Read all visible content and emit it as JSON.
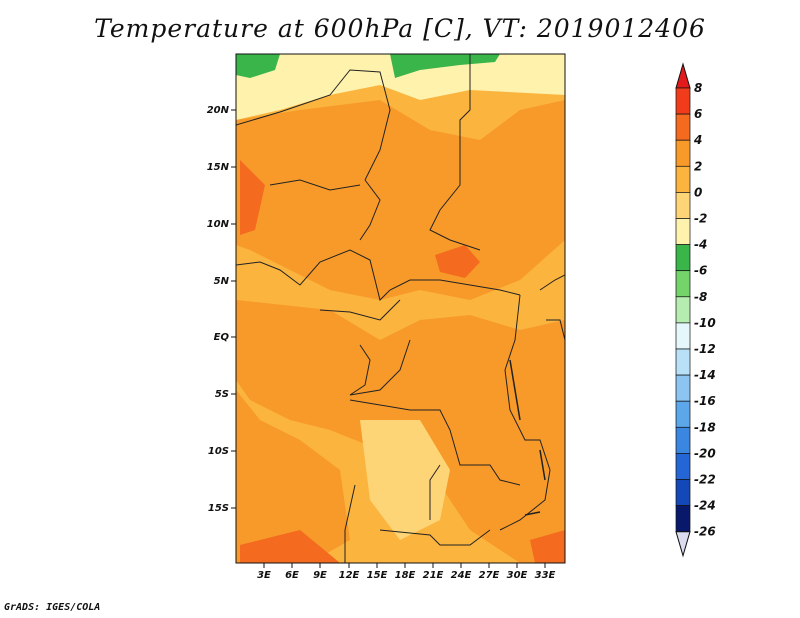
{
  "title": "Temperature at 600hPa [C], VT: 2019012406",
  "credit": "GrADS: IGES/COLA",
  "map": {
    "lat_labels": [
      "20N",
      "15N",
      "10N",
      "5N",
      "EQ",
      "5S",
      "10S",
      "15S"
    ],
    "lon_labels": [
      "3E",
      "6E",
      "9E",
      "12E",
      "15E",
      "18E",
      "21E",
      "24E",
      "27E",
      "30E",
      "33E"
    ]
  },
  "colorbar": {
    "levels": [
      "8",
      "6",
      "4",
      "2",
      "0",
      "-2",
      "-4",
      "-6",
      "-8",
      "-10",
      "-12",
      "-14",
      "-16",
      "-18",
      "-20",
      "-22",
      "-24",
      "-26"
    ],
    "colors": [
      "#e31a1c",
      "#f03c1a",
      "#f46a1e",
      "#f79a2a",
      "#fbb43e",
      "#fdd576",
      "#fff2ad",
      "#3ab54a",
      "#74d46a",
      "#b5ecb0",
      "#e6f7fb",
      "#b8e1f8",
      "#8cc5f2",
      "#5ca6ea",
      "#3a86e0",
      "#2466d6",
      "#1447b8",
      "#08186b",
      "#dcdcf0"
    ]
  }
}
